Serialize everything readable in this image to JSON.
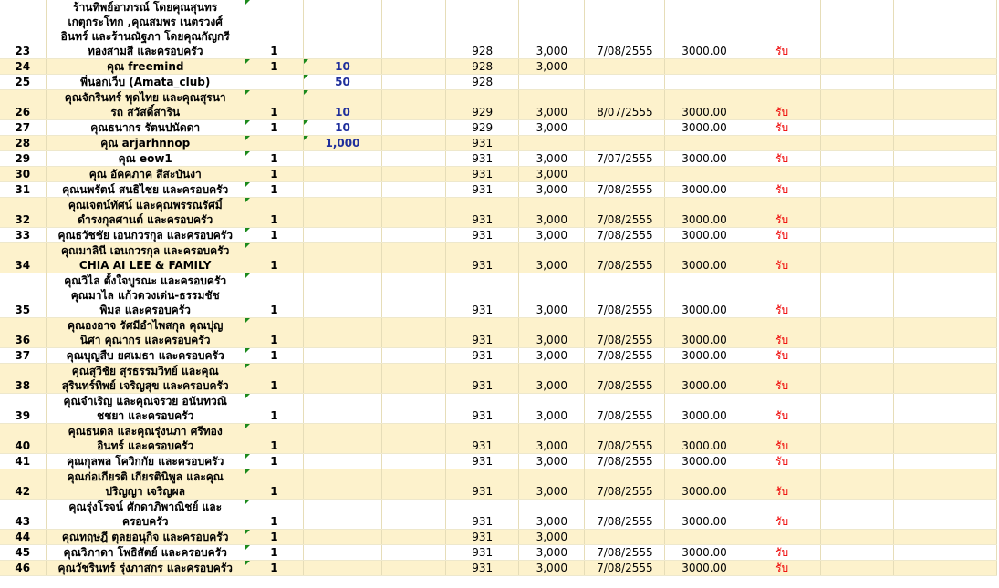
{
  "rows": [
    {
      "no": "23",
      "name": [
        "ร้านทิพย์อาภรณ์ โดยคุณสุนทร",
        "เกตุกระโทก ,คุณสมพร เนตรวงศ์",
        "อินทร์ และร้านณัฐภา โดยคุณกัญกรี",
        "ทองสามสี และครอบครัว"
      ],
      "c1": "1",
      "c2": "",
      "code": "928",
      "amount": "3,000",
      "date": "7/08/2555",
      "paid": "3000.00",
      "status": "รับ"
    },
    {
      "no": "24",
      "name": [
        "คุณ freemind"
      ],
      "c1": "1",
      "c2": "10",
      "code": "928",
      "amount": "3,000",
      "date": "",
      "paid": "",
      "status": ""
    },
    {
      "no": "25",
      "name": [
        "พี่นอกเว็บ (Amata_club)"
      ],
      "c1": "",
      "c2": "50",
      "code": "928",
      "amount": "",
      "date": "",
      "paid": "",
      "status": ""
    },
    {
      "no": "26",
      "name": [
        "คุณจักรินทร์ พุดไทย และคุณสุรนา",
        "รถ สวัสดิ์สาริน"
      ],
      "c1": "1",
      "c2": "10",
      "code": "929",
      "amount": "3,000",
      "date": "8/07/2555",
      "paid": "3000.00",
      "status": "รับ"
    },
    {
      "no": "27",
      "name": [
        "คุณธนากร รัตนปนัดดา"
      ],
      "c1": "1",
      "c2": "10",
      "code": "929",
      "amount": "3,000",
      "date": "",
      "paid": "3000.00",
      "status": "รับ"
    },
    {
      "no": "28",
      "name": [
        "คุณ arjarhnnop"
      ],
      "c1": "",
      "c2": "1,000",
      "code": "931",
      "amount": "",
      "date": "",
      "paid": "",
      "status": ""
    },
    {
      "no": "29",
      "name": [
        "คุณ eow1"
      ],
      "c1": "1",
      "c2": "",
      "code": "931",
      "amount": "3,000",
      "date": "7/07/2555",
      "paid": "3000.00",
      "status": "รับ"
    },
    {
      "no": "30",
      "name": [
        "คุณ อัคคภาค สีสะบันงา"
      ],
      "c1": "1",
      "c2": "",
      "code": "931",
      "amount": "3,000",
      "date": "",
      "paid": "",
      "status": ""
    },
    {
      "no": "31",
      "name": [
        "คุณนพรัตน์ สนธิไชย และครอบครัว"
      ],
      "c1": "1",
      "c2": "",
      "code": "931",
      "amount": "3,000",
      "date": "7/08/2555",
      "paid": "3000.00",
      "status": "รับ"
    },
    {
      "no": "32",
      "name": [
        "คุณเจตน์ทัศน์ และคุณพรรณรัศมิ์",
        "ดำรงกุลศานต์ และครอบครัว"
      ],
      "c1": "1",
      "c2": "",
      "code": "931",
      "amount": "3,000",
      "date": "7/08/2555",
      "paid": "3000.00",
      "status": "รับ"
    },
    {
      "no": "33",
      "name": [
        "คุณธวัชชัย เอนกวรกุล และครอบครัว"
      ],
      "c1": "1",
      "c2": "",
      "code": "931",
      "amount": "3,000",
      "date": "7/08/2555",
      "paid": "3000.00",
      "status": "รับ"
    },
    {
      "no": "34",
      "name": [
        "คุณมาลินี เอนกวรกุล และครอบครัว",
        "CHIA AI LEE & FAMILY"
      ],
      "c1": "1",
      "c2": "",
      "code": "931",
      "amount": "3,000",
      "date": "7/08/2555",
      "paid": "3000.00",
      "status": "รับ"
    },
    {
      "no": "35",
      "name": [
        "คุณวิไล ตั้งใจบูรณะ และครอบครัว",
        "คุณมาไล แก้วดวงเด่น-ธรรมชัช",
        "พิมล และครอบครัว"
      ],
      "c1": "1",
      "c2": "",
      "code": "931",
      "amount": "3,000",
      "date": "7/08/2555",
      "paid": "3000.00",
      "status": "รับ"
    },
    {
      "no": "36",
      "name": [
        "คุณองอาจ รัศมีอำไพสกุล คุณปุญ",
        "นิศา คุณากร และครอบครัว"
      ],
      "c1": "1",
      "c2": "",
      "code": "931",
      "amount": "3,000",
      "date": "7/08/2555",
      "paid": "3000.00",
      "status": "รับ"
    },
    {
      "no": "37",
      "name": [
        "คุณบุญสืบ ยศเมธา และครอบครัว"
      ],
      "c1": "1",
      "c2": "",
      "code": "931",
      "amount": "3,000",
      "date": "7/08/2555",
      "paid": "3000.00",
      "status": "รับ"
    },
    {
      "no": "38",
      "name": [
        "คุณสุวิชัย สุรธรรมวิทย์ และคุณ",
        "สุรินทร์ทิพย์ เจริญสุข และครอบครัว"
      ],
      "c1": "1",
      "c2": "",
      "code": "931",
      "amount": "3,000",
      "date": "7/08/2555",
      "paid": "3000.00",
      "status": "รับ"
    },
    {
      "no": "39",
      "name": [
        "คุณจำเริญ และคุณจรวย อนันทวณิ",
        "ชชยา และครอบครัว"
      ],
      "c1": "1",
      "c2": "",
      "code": "931",
      "amount": "3,000",
      "date": "7/08/2555",
      "paid": "3000.00",
      "status": "รับ"
    },
    {
      "no": "40",
      "name": [
        "คุณธนดล และคุณรุ่งนภา ศรีทอง",
        "อินทร์ และครอบครัว"
      ],
      "c1": "1",
      "c2": "",
      "code": "931",
      "amount": "3,000",
      "date": "7/08/2555",
      "paid": "3000.00",
      "status": "รับ"
    },
    {
      "no": "41",
      "name": [
        "คุณกุลพล โควิกกัย และครอบครัว"
      ],
      "c1": "1",
      "c2": "",
      "code": "931",
      "amount": "3,000",
      "date": "7/08/2555",
      "paid": "3000.00",
      "status": "รับ"
    },
    {
      "no": "42",
      "name": [
        "คุณก่อเกียรติ เกียรตินิพูล และคุณ",
        "ปริญญา เจริญผล"
      ],
      "c1": "1",
      "c2": "",
      "code": "931",
      "amount": "3,000",
      "date": "7/08/2555",
      "paid": "3000.00",
      "status": "รับ"
    },
    {
      "no": "43",
      "name": [
        "คุณรุ่งโรจน์ ศักดาภิพาณิชย์ และ",
        "ครอบครัว"
      ],
      "c1": "1",
      "c2": "",
      "code": "931",
      "amount": "3,000",
      "date": "7/08/2555",
      "paid": "3000.00",
      "status": "รับ"
    },
    {
      "no": "44",
      "name": [
        "คุณทฤษฎี ตุลยอนุกิจ และครอบครัว"
      ],
      "c1": "1",
      "c2": "",
      "code": "931",
      "amount": "3,000",
      "date": "",
      "paid": "",
      "status": ""
    },
    {
      "no": "45",
      "name": [
        "คุณวิภาดา โพธิสัตย์ และครอบครัว"
      ],
      "c1": "1",
      "c2": "",
      "code": "931",
      "amount": "3,000",
      "date": "7/08/2555",
      "paid": "3000.00",
      "status": "รับ"
    },
    {
      "no": "46",
      "name": [
        "คุณวัชรินทร์ รุ่งภาสกร และครอบครัว"
      ],
      "c1": "1",
      "c2": "",
      "code": "931",
      "amount": "3,000",
      "date": "7/08/2555",
      "paid": "3000.00",
      "status": "รับ"
    }
  ]
}
